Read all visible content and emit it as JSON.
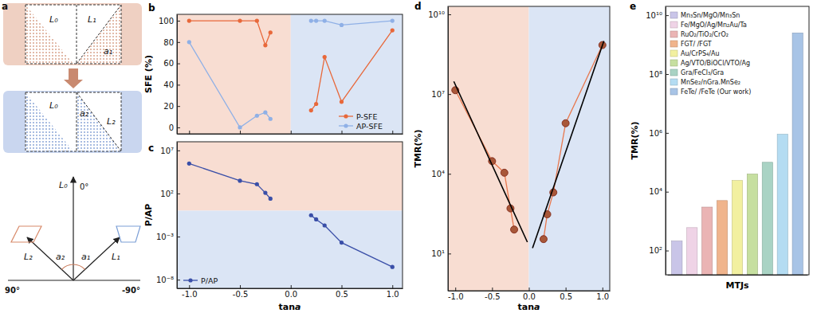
{
  "diagram": {
    "label": "a",
    "top": {
      "l0": "L₀",
      "l1": "L₁",
      "angle": "a₁"
    },
    "bottom": {
      "l0": "L₀",
      "l2": "L₂",
      "angle": "a₂"
    },
    "angles": {
      "l0": "L₀",
      "zero": "0°",
      "left": "90°",
      "right": "-90°",
      "a2": "a₂",
      "a1": "a₁",
      "l2": "L₂",
      "l1": "L₁"
    }
  },
  "chart_data": [
    {
      "type": "line",
      "title": "b",
      "ylabel": "SFE (%)",
      "x": [
        -1,
        -0.5,
        -0.333,
        -0.25,
        -0.2,
        0,
        0.2,
        0.25,
        0.333,
        0.5,
        1
      ],
      "series": [
        {
          "name": "P-SFE",
          "color": "#e8683a",
          "marker": "circle",
          "values": [
            100,
            100,
            100,
            77,
            89,
            null,
            16,
            22,
            66,
            24,
            91
          ]
        },
        {
          "name": "AP-SFE",
          "color": "#8fb0e6",
          "marker": "circle",
          "values": [
            80,
            0,
            11,
            14,
            8,
            null,
            100,
            100,
            100,
            96,
            100
          ]
        }
      ],
      "xlim": [
        -1.12,
        1.1
      ],
      "ylim": [
        -6,
        106
      ],
      "xticks": [
        {
          "value": -1,
          "label": "-1.0"
        },
        -0.5,
        {
          "value": 0,
          "label": "0.0"
        },
        0.5,
        {
          "value": 1,
          "label": "1.0"
        }
      ],
      "yticks": [
        0,
        20,
        40,
        60,
        80,
        100
      ],
      "tick_labels": "y",
      "legend": "bottom-right"
    },
    {
      "type": "line",
      "title": "c",
      "xlabel": "tana",
      "ylabel": "P/AP",
      "log": "y",
      "x": [
        -1,
        -0.5,
        -0.333,
        -0.25,
        -0.2,
        0,
        0.2,
        0.25,
        0.333,
        0.5,
        1
      ],
      "series": [
        {
          "name": "P/AP",
          "color": "#3a4fa8",
          "marker": "circle",
          "values": [
            300000,
            3000,
            1200,
            120,
            25,
            null,
            0.3,
            0.1,
            0.02,
            0.0002,
            3e-07
          ]
        }
      ],
      "xlim": [
        -1.12,
        1.1
      ],
      "ylim": [
        1e-09,
        100000000
      ],
      "xticks": [
        {
          "value": -1,
          "label": "-1.0"
        },
        -0.5,
        {
          "value": 0,
          "label": "0.0"
        },
        0.5,
        {
          "value": 1,
          "label": "1.0"
        }
      ],
      "yticks": [
        {
          "value": 10000000,
          "label": "10⁷"
        },
        {
          "value": 100,
          "label": "10²"
        },
        {
          "value": 0.001,
          "label": "10⁻³"
        },
        {
          "value": 1e-08,
          "label": "10⁻⁸"
        }
      ],
      "legend": "bottom-left"
    },
    {
      "type": "line",
      "title": "d",
      "xlabel": "tana",
      "ylabel": "TMR(%)",
      "log": "y",
      "series": [
        {
          "color": "#e8784e",
          "marker": "circle",
          "x": [
            -1,
            -0.5,
            -0.333,
            -0.25,
            -0.2,
            0,
            0.2,
            0.25,
            0.333,
            0.5,
            1
          ],
          "values": [
            14000000,
            30000,
            11000,
            500,
            80,
            null,
            35,
            300,
            2000,
            800000,
            700000000
          ]
        },
        {
          "color": "#000000",
          "marker": "none",
          "x": [
            -1.02,
            -0.02
          ],
          "values": [
            30000000,
            27
          ]
        },
        {
          "color": "#000000",
          "marker": "none",
          "x": [
            0.05,
            1.02
          ],
          "values": [
            16,
            1000000000
          ]
        }
      ],
      "xlim": [
        -1.1,
        1.1
      ],
      "ylim": [
        0.4,
        20000000000
      ],
      "xticks": [
        {
          "value": -1,
          "label": "-1.0"
        },
        -0.5,
        {
          "value": 0,
          "label": "0.0"
        },
        0.5,
        {
          "value": 1,
          "label": "1.0"
        }
      ],
      "yticks": [
        {
          "value": 10,
          "label": "10¹"
        },
        {
          "value": 10000,
          "label": "10⁴"
        },
        {
          "value": 10000000,
          "label": "10⁷"
        },
        {
          "value": 10000000000,
          "label": "10¹⁰"
        }
      ]
    },
    {
      "type": "bar",
      "title": "e",
      "xlabel": "MTJs",
      "ylabel": "TMR(%)",
      "log": "y",
      "categories": [
        "Mn₃Sn/MgO/Mn₃Sn",
        "Fe/MgO/Ag/Mn₂Au/Ta",
        "RuO₂/TiO₂/CrO₂",
        "FGT/ /FGT",
        "Au/CrPS₄/Au",
        "Ag/VTO/BiOCl/VTO/Ag",
        "Gra/FeCl₃/Gra",
        "MnSe₂/nGra.MnSe₂",
        "FeTe/  /FeTe (Our work)"
      ],
      "values": [
        210,
        600,
        3000,
        5000,
        24000,
        40000,
        100000,
        900000,
        2500000000
      ],
      "colors": [
        "#c9c5e8",
        "#efd3e6",
        "#eab4b4",
        "#f0b48c",
        "#f2f0a0",
        "#c6dfa0",
        "#a9d3c4",
        "#b4dcf2",
        "#a8c4e6"
      ],
      "ylim": [
        15,
        20000000000
      ],
      "yticks": [
        {
          "value": 100,
          "label": "10²"
        },
        {
          "value": 10000,
          "label": "10⁴"
        },
        {
          "value": 1000000,
          "label": "10⁶"
        },
        {
          "value": 100000000,
          "label": "10⁸"
        },
        {
          "value": 10000000000,
          "label": "10¹⁰"
        }
      ],
      "tick_labels": "y",
      "legend": "top-left"
    }
  ]
}
